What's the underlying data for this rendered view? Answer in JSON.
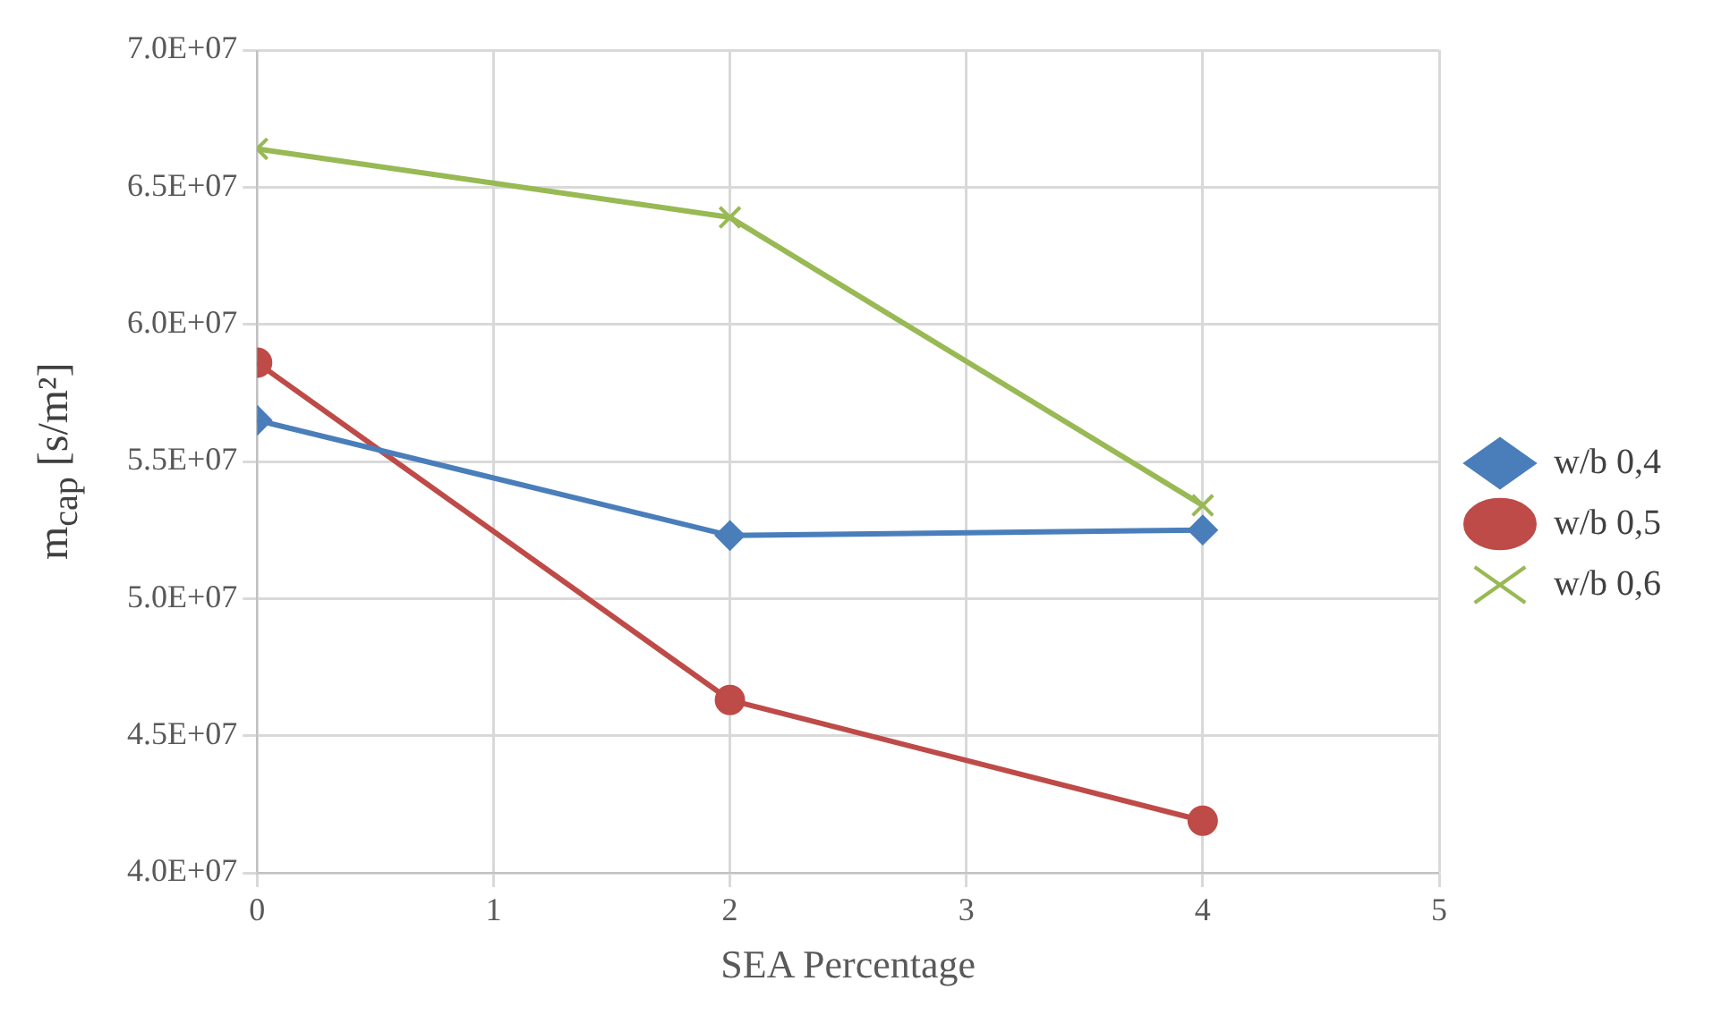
{
  "chart_data": {
    "type": "line",
    "xlabel": "SEA Percentage",
    "ylabel": "m$_{cap}$ [s/m²]",
    "x": [
      0,
      2,
      4
    ],
    "series": [
      {
        "name": "w/b 0,4",
        "color": "#4a7ebb",
        "marker": "diamond",
        "values": [
          56500000,
          52300000,
          52500000
        ]
      },
      {
        "name": "w/b 0,5",
        "color": "#be4b48",
        "marker": "circle",
        "values": [
          58600000,
          46300000,
          41900000
        ]
      },
      {
        "name": "w/b 0,6",
        "color": "#98b954",
        "marker": "cross",
        "values": [
          66400000,
          63900000,
          53400000
        ]
      }
    ],
    "xlim": [
      0,
      5
    ],
    "xticks": [
      0,
      1,
      2,
      3,
      4,
      5
    ],
    "ylim": [
      40000000,
      70000000
    ],
    "yticks": [
      {
        "value": 40000000,
        "label": "4.0E+07"
      },
      {
        "value": 45000000,
        "label": "4.5E+07"
      },
      {
        "value": 50000000,
        "label": "5.0E+07"
      },
      {
        "value": 55000000,
        "label": "5.5E+07"
      },
      {
        "value": 60000000,
        "label": "6.0E+07"
      },
      {
        "value": 65000000,
        "label": "6.5E+07"
      },
      {
        "value": 70000000,
        "label": "7.0E+07"
      }
    ],
    "grid": true,
    "legend": "right",
    "line_style": "solid"
  }
}
